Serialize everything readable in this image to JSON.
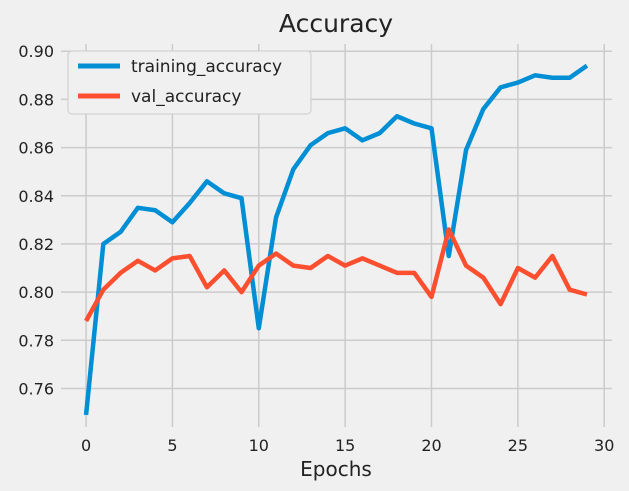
{
  "chart_data": {
    "type": "line",
    "title": "Accuracy",
    "xlabel": "Epochs",
    "ylabel": "",
    "xlim": [
      -1.45,
      30.45
    ],
    "ylim": [
      0.744,
      0.903
    ],
    "xticks": [
      0,
      5,
      10,
      15,
      20,
      25,
      30
    ],
    "yticks": [
      0.76,
      0.78,
      0.8,
      0.82,
      0.84,
      0.86,
      0.88,
      0.9
    ],
    "xtick_labels": [
      "0",
      "5",
      "10",
      "15",
      "20",
      "25",
      "30"
    ],
    "ytick_labels": [
      "0.76",
      "0.78",
      "0.80",
      "0.82",
      "0.84",
      "0.86",
      "0.88",
      "0.90"
    ],
    "grid": true,
    "legend_position": "top-left",
    "x": [
      0,
      1,
      2,
      3,
      4,
      5,
      6,
      7,
      8,
      9,
      10,
      11,
      12,
      13,
      14,
      15,
      16,
      17,
      18,
      19,
      20,
      21,
      22,
      23,
      24,
      25,
      26,
      27,
      28,
      29
    ],
    "series": [
      {
        "name": "training_accuracy",
        "color": "#008fd5",
        "values": [
          0.749,
          0.82,
          0.825,
          0.835,
          0.834,
          0.829,
          0.837,
          0.846,
          0.841,
          0.839,
          0.785,
          0.831,
          0.851,
          0.861,
          0.866,
          0.868,
          0.863,
          0.866,
          0.873,
          0.87,
          0.868,
          0.815,
          0.859,
          0.876,
          0.885,
          0.887,
          0.89,
          0.889,
          0.889,
          0.894
        ]
      },
      {
        "name": "val_accuracy",
        "color": "#fc4f30",
        "values": [
          0.788,
          0.801,
          0.808,
          0.813,
          0.809,
          0.814,
          0.815,
          0.802,
          0.809,
          0.8,
          0.811,
          0.816,
          0.811,
          0.81,
          0.815,
          0.811,
          0.814,
          0.811,
          0.808,
          0.808,
          0.798,
          0.826,
          0.811,
          0.806,
          0.795,
          0.81,
          0.806,
          0.815,
          0.801,
          0.799
        ]
      }
    ]
  }
}
